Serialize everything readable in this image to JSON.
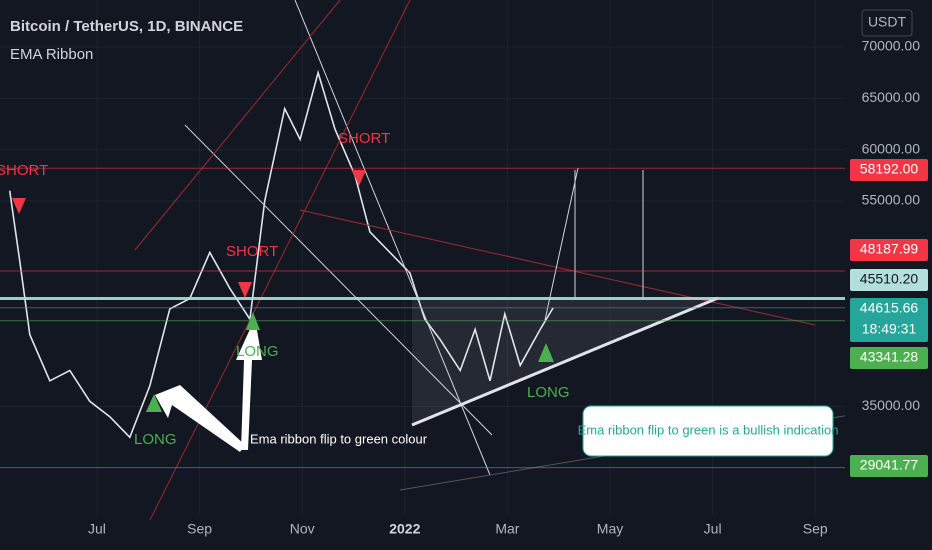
{
  "chart_data": {
    "type": "line",
    "title": "Bitcoin / TetherUS, 1D, BINANCE",
    "subtitle": "EMA Ribbon",
    "currency": "USDT",
    "color": "#e0e3eb",
    "xlim": [
      4.11,
      20.58
    ],
    "ylim": [
      24430,
      74576
    ],
    "xticks": [
      {
        "value": 6,
        "label": "Jul"
      },
      {
        "value": 8,
        "label": "Sep"
      },
      {
        "value": 10,
        "label": "Nov"
      },
      {
        "value": 12,
        "label": "2022"
      },
      {
        "value": 14,
        "label": "Mar"
      },
      {
        "value": 16,
        "label": "May"
      },
      {
        "value": 18,
        "label": "Jul"
      },
      {
        "value": 20,
        "label": "Sep"
      }
    ],
    "yticks": [
      {
        "value": 35000,
        "label": "35000.00"
      },
      {
        "value": 55000,
        "label": "55000.00"
      },
      {
        "value": 60000,
        "label": "60000.00"
      },
      {
        "value": 65000,
        "label": "65000.00"
      },
      {
        "value": 70000,
        "label": "70000.00"
      }
    ],
    "x": [
      4.3,
      4.5,
      4.69,
      5.08,
      5.47,
      5.86,
      6.25,
      6.64,
      7.03,
      7.42,
      7.81,
      8.2,
      8.59,
      8.98,
      9.27,
      9.66,
      9.96,
      10.31,
      10.64,
      11.03,
      11.32,
      11.71,
      12.1,
      12.39,
      12.69,
      13.08,
      13.37,
      13.66,
      13.95,
      14.25,
      14.64,
      14.89
    ],
    "values": [
      56000,
      49000,
      42000,
      37500,
      38500,
      35500,
      34000,
      32000,
      37000,
      44500,
      45500,
      50000,
      46500,
      43500,
      55000,
      64000,
      61000,
      67500,
      62000,
      57500,
      52000,
      50000,
      48000,
      43500,
      41500,
      38500,
      42500,
      37500,
      44000,
      39000,
      42500,
      44600
    ],
    "price_labels": [
      {
        "value": 58192.0,
        "label": "58192.00",
        "color": "#f23645"
      },
      {
        "value": 48187.99,
        "label": "48187.99",
        "color": "#f23645"
      },
      {
        "value": 45510.2,
        "label": "45510.20",
        "color": "#b2dfdb"
      },
      {
        "value": 44615.66,
        "label": "44615.66",
        "color": "#26a69a"
      },
      {
        "value": 43341.28,
        "label": "43341.28",
        "color": "#4caf50"
      },
      {
        "value": 29041.77,
        "label": "29041.77",
        "color": "#4caf50"
      }
    ],
    "countdown": "18:49:31",
    "signals": [
      "SHORT",
      "SHORT",
      "SHORT",
      "LONG",
      "LONG",
      "LONG"
    ],
    "annotations": [
      "Ema ribbon flip to green colour",
      "Ema ribbon flip to green is a bullish indication"
    ]
  }
}
